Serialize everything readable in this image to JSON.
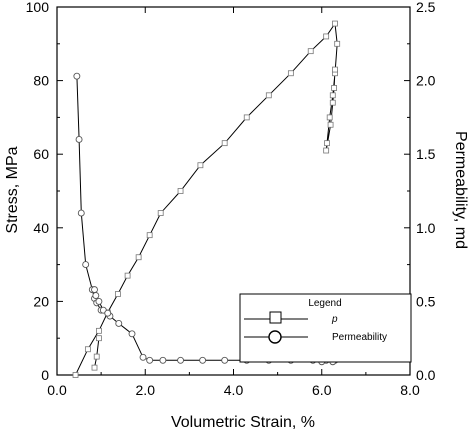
{
  "chart_data": {
    "type": "line",
    "title": "",
    "xlabel": "Volumetric Strain, %",
    "ylabel_left": "Stress, MPa",
    "ylabel_right": "Permeability, md",
    "xlim": [
      0,
      8
    ],
    "ylim_left": [
      0,
      100
    ],
    "ylim_right": [
      0,
      2.5
    ],
    "x_ticks": [
      "0.0",
      "2.0",
      "4.0",
      "6.0",
      "8.0"
    ],
    "y_left_ticks": [
      "0",
      "20",
      "40",
      "60",
      "80",
      "100"
    ],
    "y_right_ticks": [
      "0.0",
      "0.5",
      "1.0",
      "1.5",
      "2.0",
      "2.5"
    ],
    "grid": false,
    "legend": {
      "title": "Legend",
      "placement": "lower-right",
      "entries": [
        "p",
        "Permeability"
      ]
    },
    "series": [
      {
        "name": "p",
        "axis": "left",
        "marker": "square",
        "points": [
          [
            0.42,
            0
          ],
          [
            0.7,
            7
          ],
          [
            0.95,
            12
          ],
          [
            1.15,
            17
          ],
          [
            1.38,
            22
          ],
          [
            1.6,
            27
          ],
          [
            1.85,
            32
          ],
          [
            2.1,
            38
          ],
          [
            2.35,
            44
          ],
          [
            2.8,
            50
          ],
          [
            3.25,
            57
          ],
          [
            3.8,
            63
          ],
          [
            4.3,
            70
          ],
          [
            4.8,
            76
          ],
          [
            5.3,
            82
          ],
          [
            5.75,
            88
          ],
          [
            6.1,
            92
          ],
          [
            6.3,
            95.5
          ],
          [
            6.35,
            90
          ],
          [
            6.3,
            82
          ],
          [
            6.25,
            76
          ],
          [
            6.18,
            70
          ],
          [
            6.12,
            63
          ],
          [
            6.1,
            61
          ],
          [
            6.2,
            68
          ],
          [
            6.25,
            74
          ],
          [
            6.28,
            78
          ],
          [
            6.3,
            83
          ]
        ]
      },
      {
        "name": "Permeability",
        "axis": "right",
        "marker": "circle",
        "points": [
          [
            0.45,
            2.03
          ],
          [
            0.5,
            1.6
          ],
          [
            0.55,
            1.1
          ],
          [
            0.65,
            0.75
          ],
          [
            0.8,
            0.58
          ],
          [
            0.85,
            0.52
          ],
          [
            0.9,
            0.49
          ],
          [
            1.0,
            0.44
          ],
          [
            1.2,
            0.4
          ],
          [
            1.4,
            0.35
          ],
          [
            1.7,
            0.28
          ],
          [
            1.95,
            0.12
          ],
          [
            2.1,
            0.1
          ],
          [
            2.4,
            0.1
          ],
          [
            2.8,
            0.1
          ],
          [
            3.3,
            0.1
          ],
          [
            3.8,
            0.1
          ],
          [
            4.3,
            0.1
          ],
          [
            4.8,
            0.1
          ],
          [
            5.3,
            0.1
          ],
          [
            5.8,
            0.1
          ],
          [
            6.1,
            0.1
          ],
          [
            6.3,
            0.1
          ],
          [
            6.35,
            0.11
          ],
          [
            6.25,
            0.09
          ],
          [
            6.0,
            0.09
          ]
        ]
      },
      {
        "name": "",
        "axis": "right",
        "marker": "circle",
        "points": [
          [
            0.85,
            0.58
          ],
          [
            0.88,
            0.54
          ],
          [
            0.95,
            0.5
          ],
          [
            1.05,
            0.44
          ],
          [
            1.15,
            0.42
          ]
        ]
      },
      {
        "name": "",
        "axis": "left",
        "marker": "square",
        "points": [
          [
            0.85,
            2
          ],
          [
            0.9,
            5
          ],
          [
            0.95,
            10
          ]
        ]
      }
    ]
  }
}
